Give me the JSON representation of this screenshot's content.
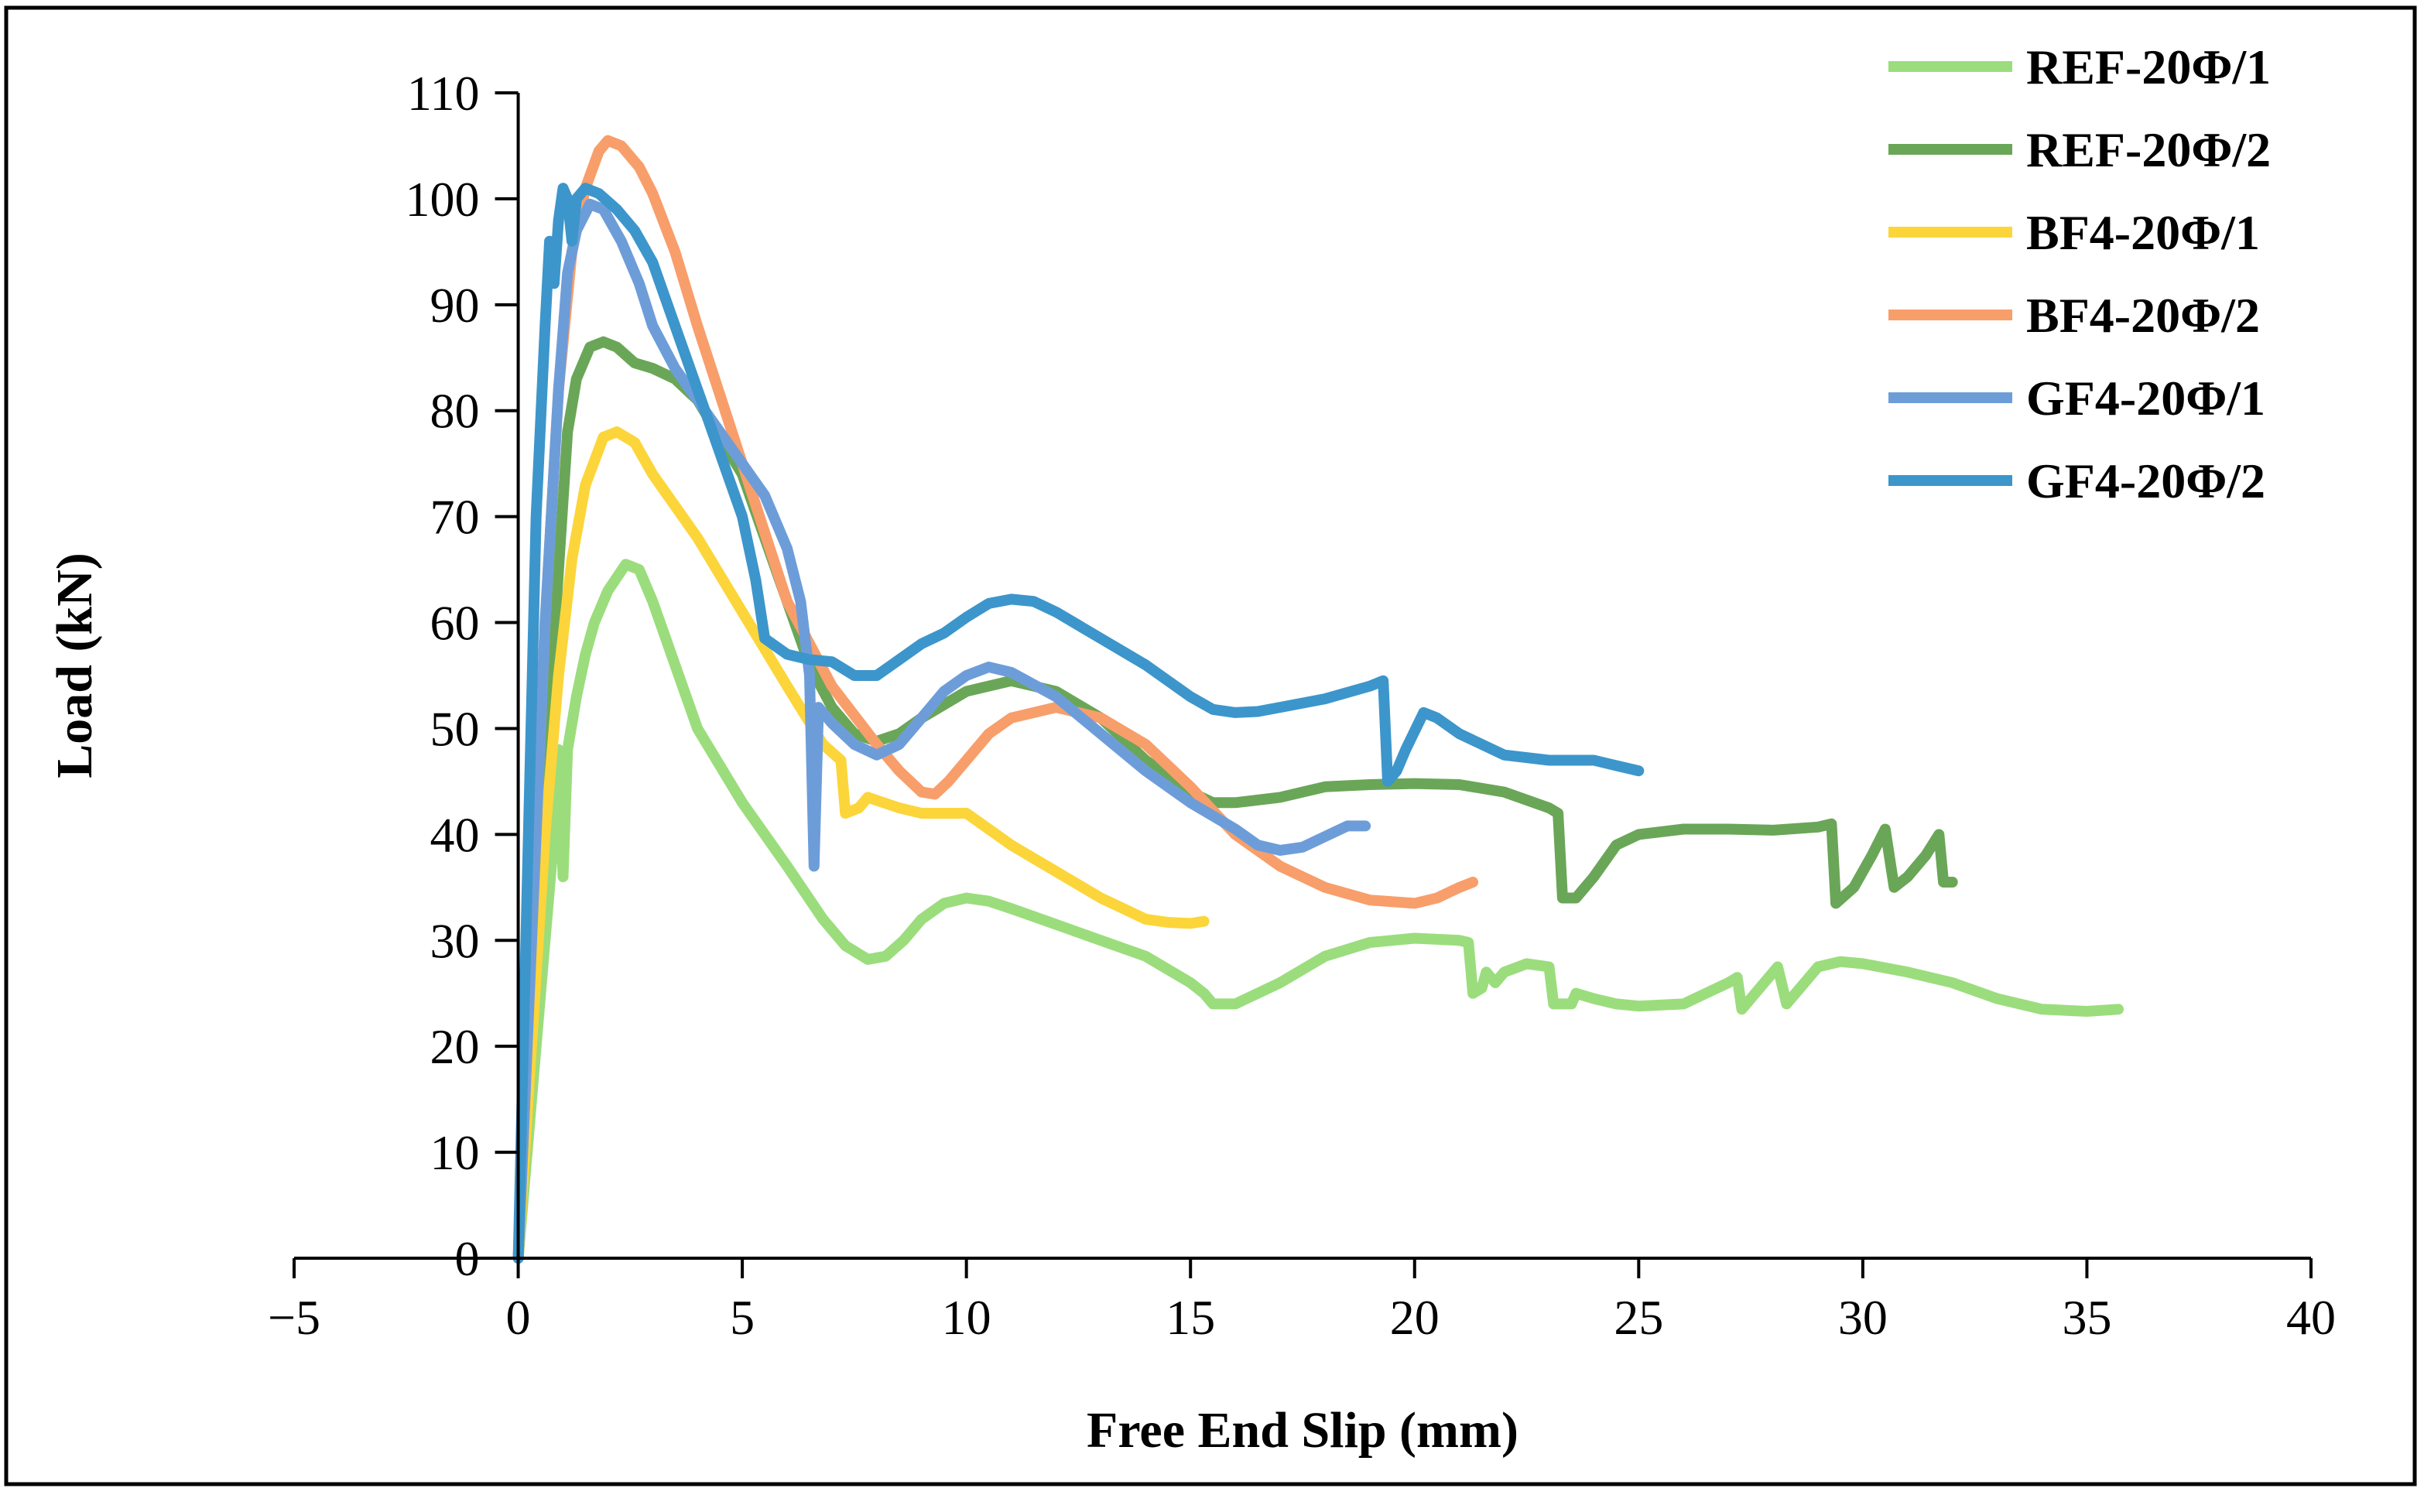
{
  "chart_data": {
    "type": "line",
    "title": "",
    "xlabel": "Free End Slip (mm)",
    "ylabel": "Load (kN)",
    "xlim": [
      -5,
      40
    ],
    "ylim": [
      0,
      110
    ],
    "xticks": [
      -5,
      0,
      5,
      10,
      15,
      20,
      25,
      30,
      35,
      40
    ],
    "yticks": [
      0,
      10,
      20,
      30,
      40,
      50,
      60,
      70,
      80,
      90,
      100,
      110
    ],
    "xtick_labels": [
      "−5",
      "0",
      "5",
      "10",
      "15",
      "20",
      "25",
      "30",
      "35",
      "40"
    ],
    "ytick_labels": [
      "0",
      "10",
      "20",
      "30",
      "40",
      "50",
      "60",
      "70",
      "80",
      "90",
      "100",
      "110"
    ],
    "legend_position": "top-right",
    "grid": false,
    "series": [
      {
        "name": "REF-20Φ/1",
        "color": "#9BDD7C",
        "points": [
          [
            0,
            0
          ],
          [
            0.3,
            15
          ],
          [
            0.6,
            30
          ],
          [
            0.8,
            40
          ],
          [
            0.9,
            48
          ],
          [
            1.0,
            36
          ],
          [
            1.1,
            48
          ],
          [
            1.3,
            53
          ],
          [
            1.5,
            57
          ],
          [
            1.7,
            60
          ],
          [
            2.0,
            63
          ],
          [
            2.4,
            65.5
          ],
          [
            2.7,
            65
          ],
          [
            3.0,
            62
          ],
          [
            3.5,
            56
          ],
          [
            4.0,
            50
          ],
          [
            5.0,
            43
          ],
          [
            6.0,
            37
          ],
          [
            6.8,
            32
          ],
          [
            7.3,
            29.5
          ],
          [
            7.8,
            28.2
          ],
          [
            8.2,
            28.5
          ],
          [
            8.6,
            30
          ],
          [
            9.0,
            32
          ],
          [
            9.5,
            33.5
          ],
          [
            10.0,
            34
          ],
          [
            10.5,
            33.7
          ],
          [
            11.0,
            33
          ],
          [
            12.0,
            31.5
          ],
          [
            13.0,
            30
          ],
          [
            14.0,
            28.5
          ],
          [
            15.0,
            26
          ],
          [
            15.3,
            25
          ],
          [
            15.5,
            24
          ],
          [
            16.0,
            24
          ],
          [
            16.5,
            25
          ],
          [
            17.0,
            26
          ],
          [
            18.0,
            28.5
          ],
          [
            19.0,
            29.8
          ],
          [
            20.0,
            30.2
          ],
          [
            21.0,
            30
          ],
          [
            21.2,
            29.8
          ],
          [
            21.3,
            25
          ],
          [
            21.5,
            25.5
          ],
          [
            21.6,
            27
          ],
          [
            21.8,
            26
          ],
          [
            22.0,
            27
          ],
          [
            22.5,
            27.8
          ],
          [
            23.0,
            27.5
          ],
          [
            23.1,
            24
          ],
          [
            23.5,
            24
          ],
          [
            23.6,
            25
          ],
          [
            24.0,
            24.5
          ],
          [
            24.5,
            24
          ],
          [
            25.0,
            23.8
          ],
          [
            26.0,
            24
          ],
          [
            26.5,
            25
          ],
          [
            27.0,
            26
          ],
          [
            27.2,
            26.5
          ],
          [
            27.3,
            23.5
          ],
          [
            27.5,
            24.5
          ],
          [
            27.8,
            26
          ],
          [
            28.1,
            27.5
          ],
          [
            28.3,
            24
          ],
          [
            28.5,
            25
          ],
          [
            29.0,
            27.5
          ],
          [
            29.5,
            28
          ],
          [
            30.0,
            27.8
          ],
          [
            31.0,
            27
          ],
          [
            32.0,
            26
          ],
          [
            33.0,
            24.5
          ],
          [
            34.0,
            23.5
          ],
          [
            35.0,
            23.3
          ],
          [
            35.7,
            23.5
          ]
        ]
      },
      {
        "name": "REF-20Φ/2",
        "color": "#6AA657",
        "points": [
          [
            0,
            0
          ],
          [
            0.3,
            20
          ],
          [
            0.6,
            45
          ],
          [
            0.9,
            65
          ],
          [
            1.1,
            78
          ],
          [
            1.3,
            83
          ],
          [
            1.6,
            86
          ],
          [
            1.9,
            86.5
          ],
          [
            2.2,
            86
          ],
          [
            2.6,
            84.5
          ],
          [
            3.0,
            84
          ],
          [
            3.5,
            83
          ],
          [
            4.0,
            81
          ],
          [
            5.0,
            74
          ],
          [
            6.0,
            62
          ],
          [
            6.5,
            56
          ],
          [
            7.0,
            52
          ],
          [
            7.5,
            49.5
          ],
          [
            8.0,
            48.8
          ],
          [
            8.5,
            49.5
          ],
          [
            9.0,
            51
          ],
          [
            10.0,
            53.5
          ],
          [
            11.0,
            54.5
          ],
          [
            12.0,
            53.5
          ],
          [
            13.0,
            51
          ],
          [
            14.0,
            47
          ],
          [
            15.0,
            44
          ],
          [
            15.5,
            43
          ],
          [
            16.0,
            43
          ],
          [
            17.0,
            43.5
          ],
          [
            18.0,
            44.5
          ],
          [
            19.0,
            44.7
          ],
          [
            20.0,
            44.8
          ],
          [
            21.0,
            44.7
          ],
          [
            22.0,
            44
          ],
          [
            23.0,
            42.5
          ],
          [
            23.2,
            42
          ],
          [
            23.3,
            34
          ],
          [
            23.6,
            34
          ],
          [
            24.0,
            36
          ],
          [
            24.5,
            39
          ],
          [
            25.0,
            40
          ],
          [
            26.0,
            40.5
          ],
          [
            27.0,
            40.5
          ],
          [
            28.0,
            40.4
          ],
          [
            29.0,
            40.7
          ],
          [
            29.3,
            41
          ],
          [
            29.4,
            33.5
          ],
          [
            29.8,
            35
          ],
          [
            30.2,
            38
          ],
          [
            30.5,
            40.5
          ],
          [
            30.7,
            35
          ],
          [
            31.0,
            36
          ],
          [
            31.4,
            38
          ],
          [
            31.7,
            40
          ],
          [
            31.8,
            35.5
          ],
          [
            32.0,
            35.5
          ]
        ]
      },
      {
        "name": "BF4-20Φ/1",
        "color": "#FCD53A",
        "points": [
          [
            0,
            0
          ],
          [
            0.3,
            20
          ],
          [
            0.6,
            40
          ],
          [
            0.9,
            55
          ],
          [
            1.2,
            66
          ],
          [
            1.5,
            73
          ],
          [
            1.9,
            77.5
          ],
          [
            2.2,
            78
          ],
          [
            2.6,
            77
          ],
          [
            3.0,
            74
          ],
          [
            3.5,
            71
          ],
          [
            4.0,
            68
          ],
          [
            5.0,
            61
          ],
          [
            6.0,
            54
          ],
          [
            6.8,
            48.5
          ],
          [
            7.2,
            47
          ],
          [
            7.3,
            42
          ],
          [
            7.6,
            42.5
          ],
          [
            7.8,
            43.5
          ],
          [
            8.5,
            42.5
          ],
          [
            9.0,
            42
          ],
          [
            10.0,
            42
          ],
          [
            10.5,
            40.5
          ],
          [
            11.0,
            39
          ],
          [
            12.0,
            36.5
          ],
          [
            13.0,
            34
          ],
          [
            13.5,
            33
          ],
          [
            14.0,
            32
          ],
          [
            14.5,
            31.7
          ],
          [
            15.0,
            31.6
          ],
          [
            15.3,
            31.8
          ]
        ]
      },
      {
        "name": "BF4-20Φ/2",
        "color": "#F89E6B",
        "points": [
          [
            0,
            0
          ],
          [
            0.3,
            30
          ],
          [
            0.6,
            60
          ],
          [
            0.9,
            82
          ],
          [
            1.2,
            95
          ],
          [
            1.5,
            101
          ],
          [
            1.8,
            104.5
          ],
          [
            2.0,
            105.5
          ],
          [
            2.3,
            105
          ],
          [
            2.7,
            103
          ],
          [
            3.0,
            100.5
          ],
          [
            3.5,
            95
          ],
          [
            4.0,
            88
          ],
          [
            5.0,
            75
          ],
          [
            6.0,
            62
          ],
          [
            7.0,
            54
          ],
          [
            8.0,
            48.5
          ],
          [
            8.5,
            46
          ],
          [
            9.0,
            44
          ],
          [
            9.3,
            43.8
          ],
          [
            9.6,
            45
          ],
          [
            10.0,
            47
          ],
          [
            10.5,
            49.5
          ],
          [
            11.0,
            51
          ],
          [
            12.0,
            52
          ],
          [
            13.0,
            51
          ],
          [
            14.0,
            48.5
          ],
          [
            15.0,
            44.5
          ],
          [
            16.0,
            40
          ],
          [
            17.0,
            37
          ],
          [
            18.0,
            35
          ],
          [
            19.0,
            33.8
          ],
          [
            20.0,
            33.5
          ],
          [
            20.5,
            34
          ],
          [
            21.0,
            35
          ],
          [
            21.3,
            35.5
          ]
        ]
      },
      {
        "name": "GF4-20Φ/1",
        "color": "#6D9DD9",
        "points": [
          [
            0,
            0
          ],
          [
            0.3,
            30
          ],
          [
            0.6,
            60
          ],
          [
            0.9,
            82
          ],
          [
            1.1,
            93
          ],
          [
            1.3,
            97
          ],
          [
            1.6,
            99.5
          ],
          [
            1.9,
            99
          ],
          [
            2.3,
            96
          ],
          [
            2.7,
            92
          ],
          [
            3.0,
            88
          ],
          [
            3.5,
            84
          ],
          [
            4.0,
            81
          ],
          [
            5.0,
            75
          ],
          [
            5.5,
            72
          ],
          [
            6.0,
            67
          ],
          [
            6.3,
            62
          ],
          [
            6.5,
            55
          ],
          [
            6.6,
            37
          ],
          [
            6.7,
            52
          ],
          [
            7.0,
            50.5
          ],
          [
            7.5,
            48.5
          ],
          [
            8.0,
            47.5
          ],
          [
            8.5,
            48.5
          ],
          [
            9.0,
            51
          ],
          [
            9.5,
            53.5
          ],
          [
            10.0,
            55
          ],
          [
            10.5,
            55.8
          ],
          [
            11.0,
            55.3
          ],
          [
            12.0,
            53
          ],
          [
            13.0,
            49.5
          ],
          [
            14.0,
            46
          ],
          [
            15.0,
            43
          ],
          [
            16.0,
            40.5
          ],
          [
            16.5,
            39
          ],
          [
            17.0,
            38.5
          ],
          [
            17.5,
            38.8
          ],
          [
            18.0,
            39.8
          ],
          [
            18.5,
            40.8
          ],
          [
            18.9,
            40.8
          ]
        ]
      },
      {
        "name": "GF4-20Φ/2",
        "color": "#3C96CB",
        "points": [
          [
            0,
            0
          ],
          [
            0.2,
            35
          ],
          [
            0.4,
            70
          ],
          [
            0.6,
            88
          ],
          [
            0.7,
            96
          ],
          [
            0.8,
            92
          ],
          [
            0.9,
            98
          ],
          [
            1.0,
            101
          ],
          [
            1.1,
            100
          ],
          [
            1.2,
            96
          ],
          [
            1.3,
            100
          ],
          [
            1.5,
            101
          ],
          [
            1.8,
            100.5
          ],
          [
            2.2,
            99
          ],
          [
            2.6,
            97
          ],
          [
            3.0,
            94
          ],
          [
            3.5,
            88
          ],
          [
            4.0,
            82
          ],
          [
            4.5,
            76
          ],
          [
            5.0,
            70
          ],
          [
            5.3,
            64
          ],
          [
            5.5,
            58.5
          ],
          [
            6.0,
            57
          ],
          [
            6.5,
            56.5
          ],
          [
            7.0,
            56.3
          ],
          [
            7.5,
            55
          ],
          [
            8.0,
            55
          ],
          [
            8.5,
            56.5
          ],
          [
            9.0,
            58
          ],
          [
            9.5,
            59
          ],
          [
            10.0,
            60.5
          ],
          [
            10.5,
            61.8
          ],
          [
            11.0,
            62.2
          ],
          [
            11.5,
            62
          ],
          [
            12.0,
            61
          ],
          [
            13.0,
            58.5
          ],
          [
            14.0,
            56
          ],
          [
            15.0,
            53
          ],
          [
            15.5,
            51.8
          ],
          [
            16.0,
            51.5
          ],
          [
            16.5,
            51.6
          ],
          [
            17.0,
            52
          ],
          [
            18.0,
            52.8
          ],
          [
            19.0,
            54
          ],
          [
            19.3,
            54.5
          ],
          [
            19.4,
            45
          ],
          [
            19.6,
            46
          ],
          [
            19.8,
            48
          ],
          [
            20.2,
            51.5
          ],
          [
            20.5,
            51
          ],
          [
            21.0,
            49.5
          ],
          [
            22.0,
            47.5
          ],
          [
            23.0,
            47
          ],
          [
            24.0,
            47
          ],
          [
            24.5,
            46.5
          ],
          [
            25.0,
            46
          ]
        ]
      }
    ]
  }
}
